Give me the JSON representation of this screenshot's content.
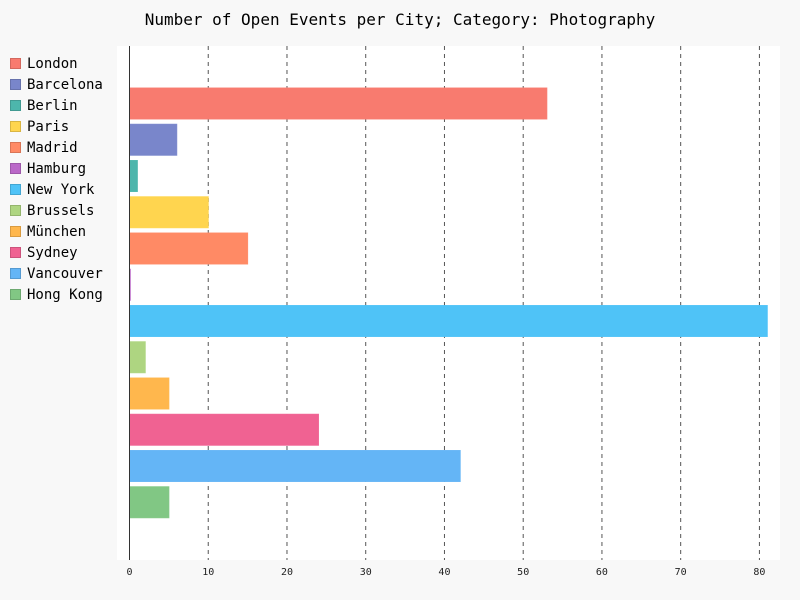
{
  "chart_data": {
    "type": "bar",
    "orientation": "horizontal",
    "title": "Number of Open Events per City; Category: Photography",
    "xlabel": "",
    "ylabel": "",
    "xlim": [
      0,
      81
    ],
    "x_ticks": [
      "0",
      "10",
      "20",
      "30",
      "40",
      "50",
      "60",
      "70",
      "80"
    ],
    "grid": "vertical dashed",
    "legend_position": "left",
    "series": [
      {
        "name": "London",
        "value": 53,
        "color": "#f87b6f"
      },
      {
        "name": "Barcelona",
        "value": 6,
        "color": "#7986cb"
      },
      {
        "name": "Berlin",
        "value": 1,
        "color": "#4db6ac"
      },
      {
        "name": "Paris",
        "value": 10,
        "color": "#ffd54f"
      },
      {
        "name": "Madrid",
        "value": 15,
        "color": "#ff8a65"
      },
      {
        "name": "Hamburg",
        "value": 0,
        "color": "#ba68c8"
      },
      {
        "name": "New York",
        "value": 81,
        "color": "#4fc3f7"
      },
      {
        "name": "Brussels",
        "value": 2,
        "color": "#aed581"
      },
      {
        "name": "München",
        "value": 5,
        "color": "#ffb74d"
      },
      {
        "name": "Sydney",
        "value": 24,
        "color": "#f06292"
      },
      {
        "name": "Vancouver",
        "value": 42,
        "color": "#64b5f6"
      },
      {
        "name": "Hong Kong",
        "value": 5,
        "color": "#81c784"
      }
    ]
  }
}
